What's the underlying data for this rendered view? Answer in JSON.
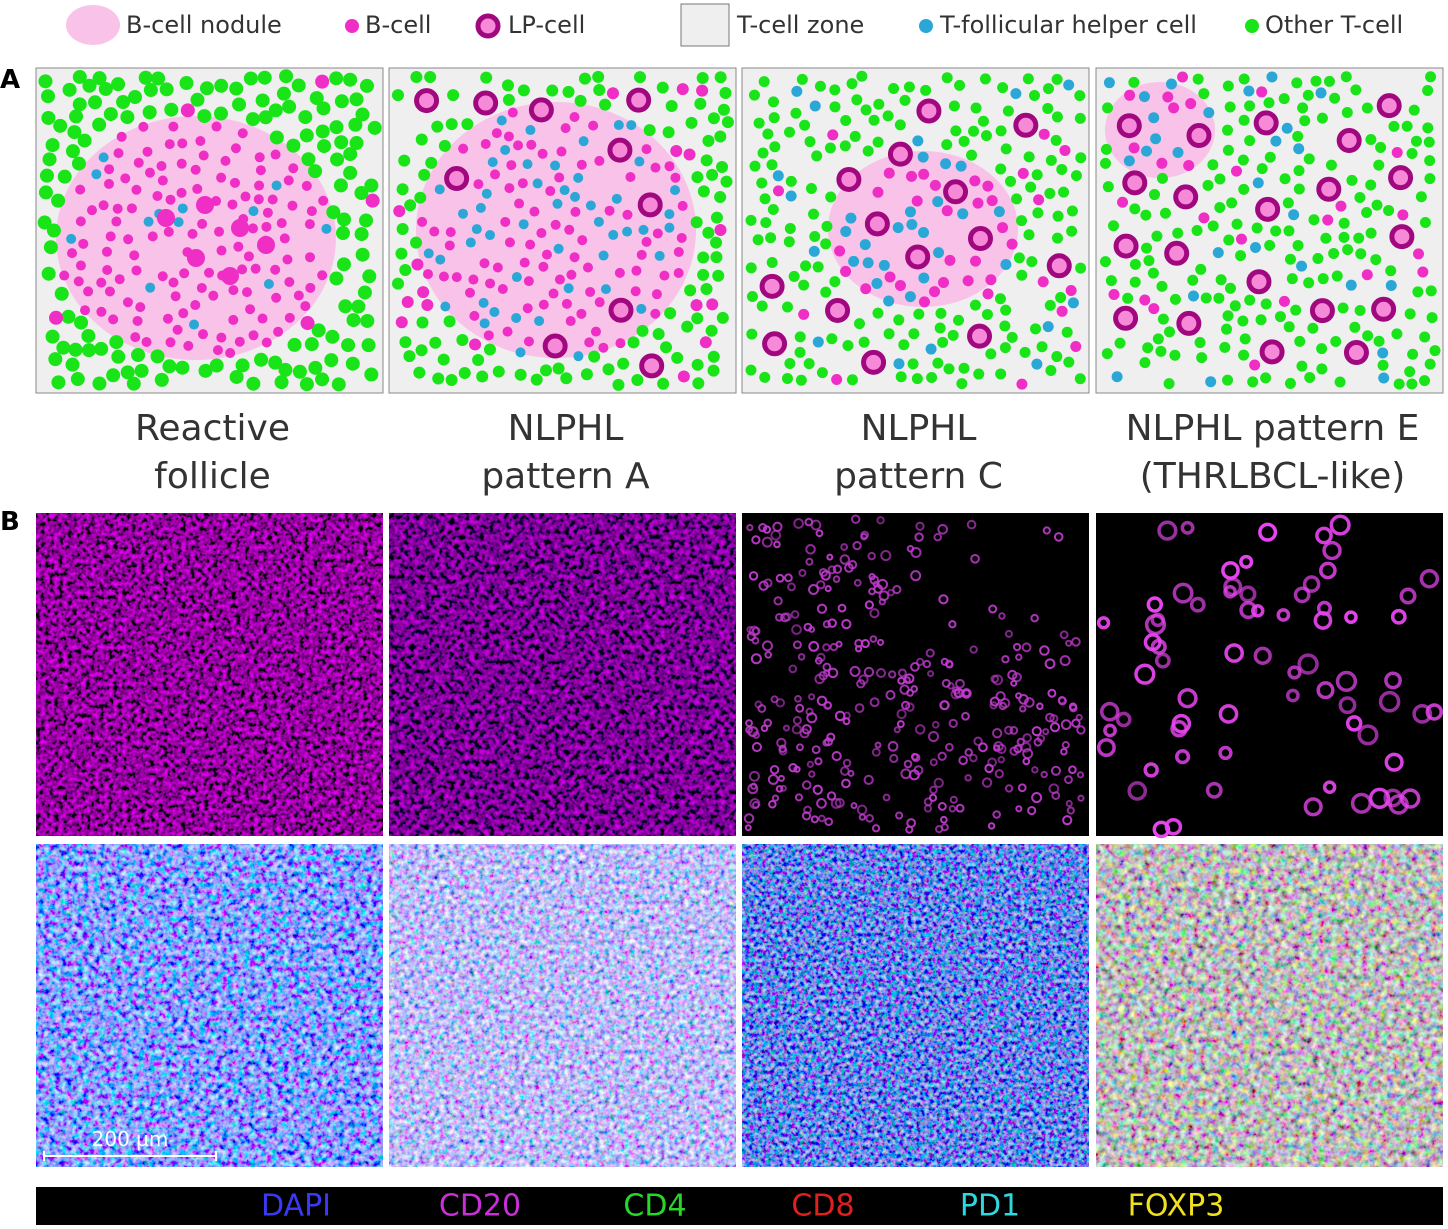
{
  "legend": [
    "B-cell nodule",
    "B-cell",
    "LP-cell",
    "T-cell zone",
    "T-follicular helper cell",
    "Other T-cell"
  ],
  "panel_labels": [
    "A",
    "B"
  ],
  "panels": [
    {
      "title": [
        "Reactive",
        "follicle"
      ]
    },
    {
      "title": [
        "NLPHL",
        "pattern A"
      ]
    },
    {
      "title": [
        "NLPHL",
        "pattern C"
      ]
    },
    {
      "title": [
        "NLPHL pattern E",
        "(THRLBCL-like)"
      ]
    }
  ],
  "scale_bar": "200 µm",
  "channels": [
    "DAPI",
    "CD20",
    "CD4",
    "CD8",
    "PD1",
    "FOXP3"
  ]
}
